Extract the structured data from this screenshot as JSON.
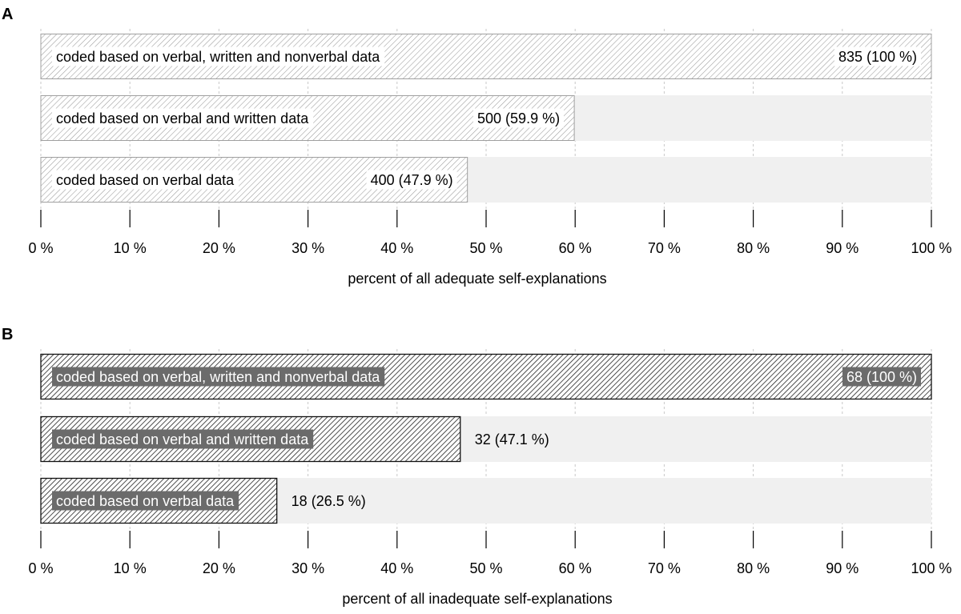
{
  "chart_data": [
    {
      "type": "bar",
      "orientation": "horizontal",
      "panel_label": "A",
      "xlabel": "percent of all adequate self-explanations",
      "xlim": [
        0,
        100
      ],
      "xticks": [
        "0 %",
        "10 %",
        "20 %",
        "30 %",
        "40 %",
        "50 %",
        "60 %",
        "70 %",
        "80 %",
        "90 %",
        "100 %"
      ],
      "grid": true,
      "categories": [
        "coded based on verbal, written and nonverbal data",
        "coded based on verbal and written data",
        "coded based on verbal data"
      ],
      "values": [
        100,
        59.9,
        47.9
      ],
      "counts": [
        835,
        500,
        400
      ],
      "value_labels": [
        "835 (100 %)",
        "500 (59.9 %)",
        "400 (47.9 %)"
      ],
      "colors": {
        "hatch": "#9a9a9a",
        "fill": "#ffffff",
        "track": "#f0f0f0",
        "border": "#a0a0a0"
      }
    },
    {
      "type": "bar",
      "orientation": "horizontal",
      "panel_label": "B",
      "xlabel": "percent of all inadequate self-explanations",
      "xlim": [
        0,
        100
      ],
      "xticks": [
        "0 %",
        "10 %",
        "20 %",
        "30 %",
        "40 %",
        "50 %",
        "60 %",
        "70 %",
        "80 %",
        "90 %",
        "100 %"
      ],
      "grid": true,
      "categories": [
        "coded based on verbal, written and nonverbal data",
        "coded based on verbal and written data",
        "coded based on verbal data"
      ],
      "values": [
        100,
        47.1,
        26.5
      ],
      "counts": [
        68,
        32,
        18
      ],
      "value_labels": [
        "68 (100 %)",
        "32 (47.1 %)",
        "18 (26.5 %)"
      ],
      "colors": {
        "hatch": "#222222",
        "fill": "#ffffff",
        "track": "#f0f0f0",
        "border": "#111111",
        "label_box": "#6b6b6b"
      }
    }
  ]
}
